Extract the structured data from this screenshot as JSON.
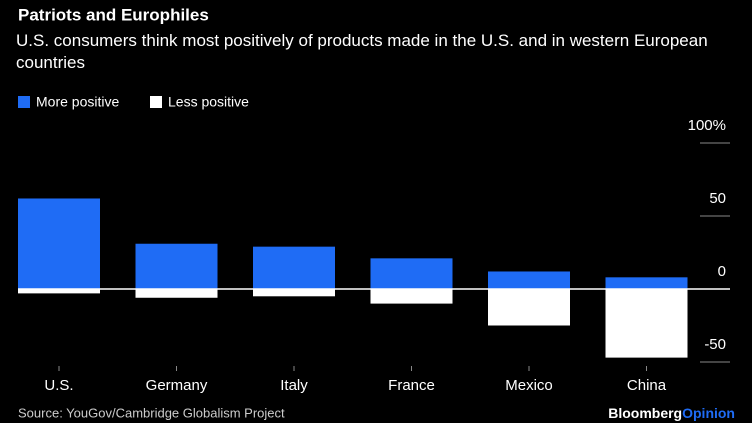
{
  "chart_data": {
    "type": "bar",
    "title": "Patriots and Europhiles",
    "subtitle": "U.S. consumers think most positively of products made in the U.S. and in western European countries",
    "categories": [
      "U.S.",
      "Germany",
      "Italy",
      "France",
      "Mexico",
      "China"
    ],
    "series": [
      {
        "name": "More positive",
        "color": "#1f6cf5",
        "values": [
          62,
          31,
          29,
          21,
          12,
          8
        ]
      },
      {
        "name": "Less positive",
        "color": "#ffffff",
        "values": [
          -3,
          -6,
          -5,
          -10,
          -25,
          -47
        ]
      }
    ],
    "ylim": [
      -50,
      100
    ],
    "yticks": [
      {
        "value": 100,
        "label": "100%"
      },
      50,
      0,
      -50
    ],
    "source": "Source: YouGov/Cambridge Globalism Project",
    "brand": "Bloomberg",
    "brand_suffix": "Opinion"
  }
}
